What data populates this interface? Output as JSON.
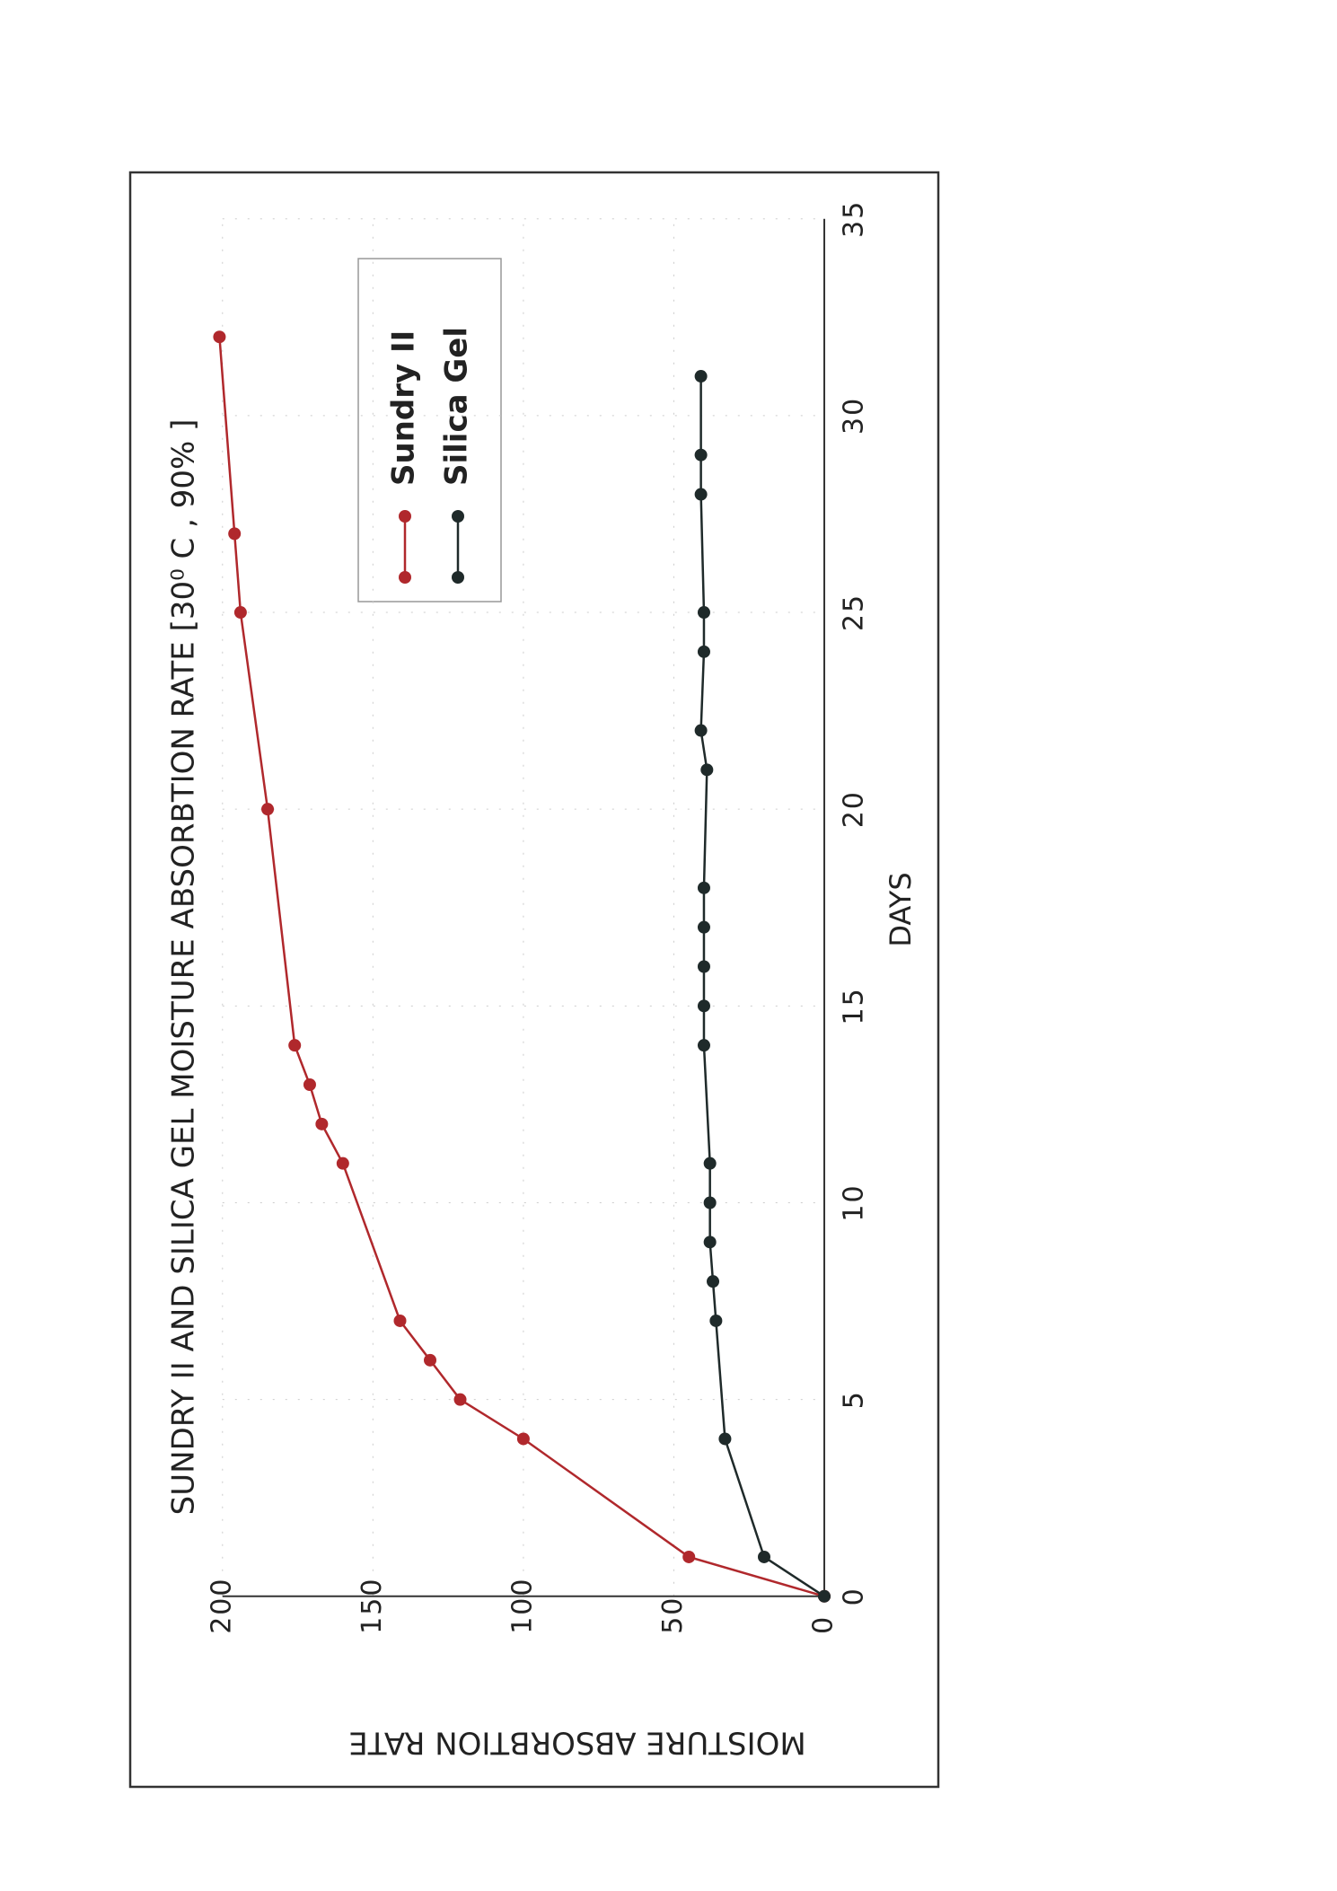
{
  "chart_data": {
    "type": "line",
    "title": "SUNDRY II AND SILICA GEL MOISTURE ABSORBTION RATE [30⁰ C , 90% ]",
    "xlabel": "DAYS",
    "ylabel": "MOISTURE ABSORBTION RATE",
    "xlim": [
      0,
      35
    ],
    "xticks": [
      0,
      5,
      10,
      15,
      20,
      25,
      30,
      35
    ],
    "ylim": [
      0,
      200
    ],
    "yticks": [
      0,
      50,
      100,
      150,
      200
    ],
    "grid": true,
    "legend": "upper right",
    "series": [
      {
        "name": "Sundry II",
        "color": "#b0282c",
        "x": [
          0,
          1,
          4,
          5,
          6,
          7,
          11,
          12,
          13,
          14,
          20,
          25,
          27,
          32
        ],
        "values": [
          0,
          45,
          100,
          121,
          131,
          141,
          160,
          167,
          171,
          176,
          185,
          194,
          196,
          201
        ]
      },
      {
        "name": "Silica Gel",
        "color": "#1f2a2a",
        "x": [
          0,
          1,
          4,
          7,
          8,
          9,
          10,
          11,
          14,
          15,
          16,
          17,
          18,
          21,
          22,
          24,
          25,
          28,
          29,
          31
        ],
        "values": [
          0,
          20,
          33,
          36,
          37,
          38,
          38,
          38,
          40,
          40,
          40,
          40,
          40,
          39,
          41,
          40,
          40,
          41,
          41,
          41
        ]
      }
    ]
  }
}
